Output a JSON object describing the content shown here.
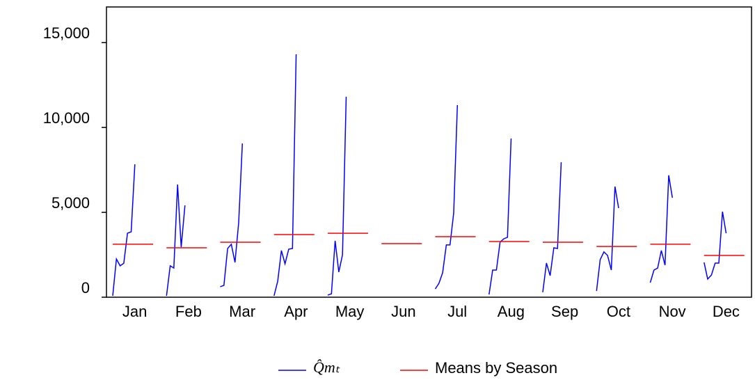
{
  "chart_data": {
    "type": "seasonal-subseries",
    "categories": [
      "Jan",
      "Feb",
      "Mar",
      "Apr",
      "May",
      "Jun",
      "Jul",
      "Aug",
      "Sep",
      "Oct",
      "Nov",
      "Dec"
    ],
    "series": [
      {
        "name": "Q̂mₜ",
        "color": "#0000ff",
        "values": [
          [
            80,
            2250,
            1850,
            2000,
            3770,
            3850,
            7830
          ],
          [
            80,
            1850,
            1720,
            6640,
            2950,
            5410
          ],
          [
            620,
            700,
            2870,
            3120,
            2050,
            4390,
            9060
          ],
          [
            80,
            940,
            2750,
            1970,
            2830,
            2870,
            14310
          ],
          [
            120,
            200,
            3320,
            1480,
            2500,
            11810
          ],
          [],
          [
            490,
            820,
            1440,
            3080,
            3080,
            4960,
            11320
          ],
          [
            160,
            1600,
            1600,
            3240,
            3440,
            3530,
            9350
          ],
          [
            290,
            2010,
            1270,
            2910,
            2870,
            7950
          ],
          [
            370,
            2210,
            2670,
            2460,
            1600,
            6520,
            5250
          ],
          [
            860,
            1600,
            1720,
            2750,
            1890,
            7180,
            5860
          ],
          [
            2050,
            1070,
            1310,
            2010,
            2010,
            5040,
            3770
          ]
        ]
      },
      {
        "name": "Means by Season",
        "color": "#ff0000",
        "values": [
          3120,
          2910,
          3240,
          3690,
          3770,
          3160,
          3570,
          3280,
          3240,
          2990,
          3120,
          2460
        ]
      }
    ],
    "ylim": [
      0,
      17100
    ],
    "yticks": [
      {
        "value": 0,
        "label": "0"
      },
      {
        "value": 5000,
        "label": "5,000"
      },
      {
        "value": 10000,
        "label": "10,000"
      },
      {
        "value": 15000,
        "label": "15,000"
      }
    ]
  }
}
